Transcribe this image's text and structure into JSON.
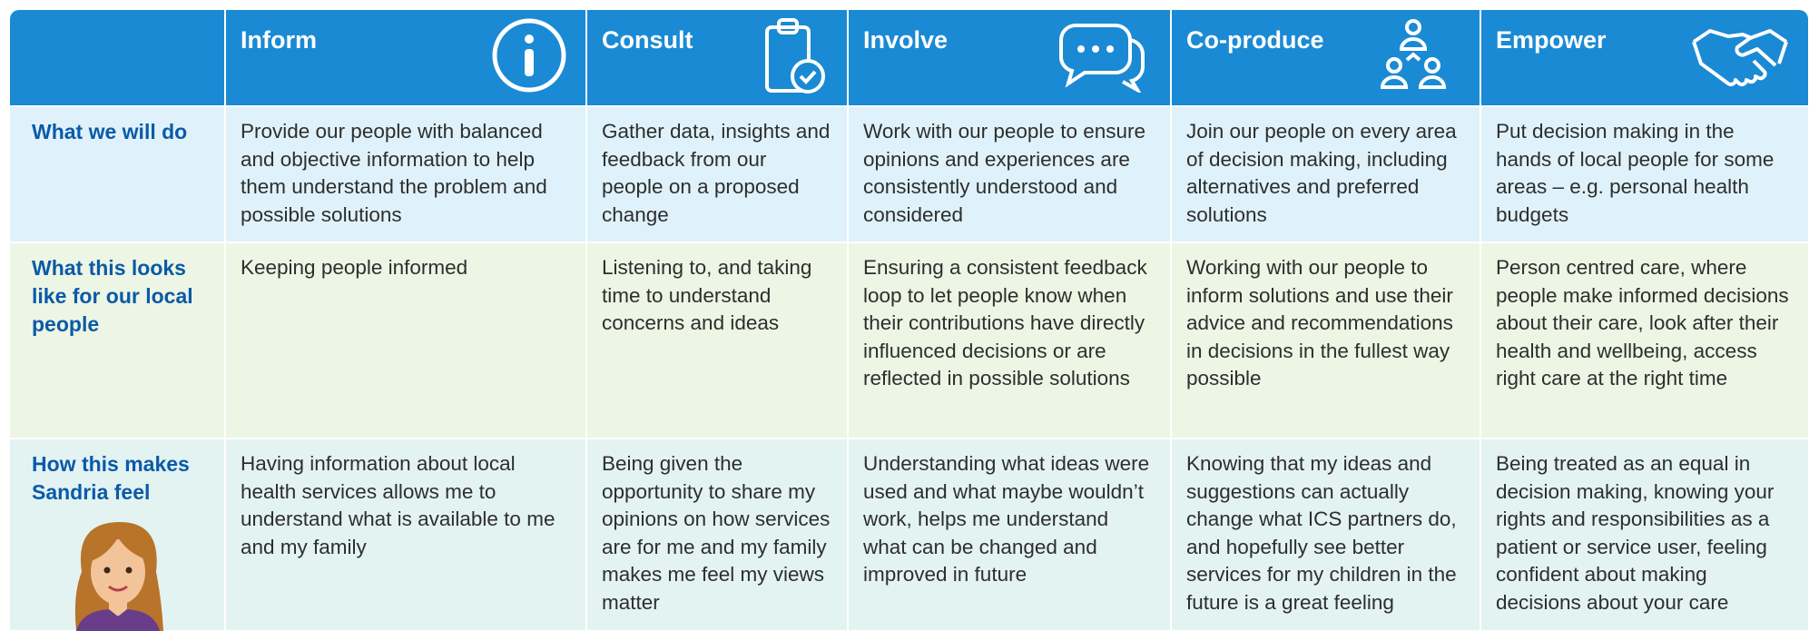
{
  "header": {
    "columns": [
      "Inform",
      "Consult",
      "Involve",
      "Co-produce",
      "Empower"
    ]
  },
  "rows": [
    {
      "label": "What we will do",
      "cells": [
        "Provide our people with balanced and objective information to help them understand the problem and possible solutions",
        "Gather data, insights and feedback from our people on a proposed change",
        "Work with our people to ensure opinions and experiences are consistently understood and considered",
        "Join our people on every area of decision making, including alternatives and preferred solutions",
        "Put decision making in the hands of local people for some areas – e.g. personal health budgets"
      ]
    },
    {
      "label": "What this looks like for our local people",
      "cells": [
        "Keeping people informed",
        "Listening to, and taking time to understand concerns and ideas",
        "Ensuring a consistent feedback loop to let people know when their contributions have directly influenced decisions or are reflected in possible solutions",
        "Working with our people to inform solutions and use their advice and recommendations in decisions in the fullest way possible",
        "Person centred care, where people make informed decisions about their care, look after their health and wellbeing, access right care at the right time"
      ]
    },
    {
      "label": "How this makes Sandria feel",
      "cells": [
        "Having information about local health services allows me to understand what is available to me and my family",
        "Being given the opportunity to share my opinions on how services are for me and my family makes me feel my views matter",
        "Understanding what ideas were used and what maybe wouldn’t work, helps me understand what can be changed and improved in future",
        "Knowing that my ideas and suggestions can actually change what ICS partners do, and hopefully see better services for my children in the future is a great feeling",
        "Being treated as an equal in decision making, knowing your rights and responsibilities as a patient or service user, feeling confident about making decisions about your care"
      ]
    }
  ]
}
